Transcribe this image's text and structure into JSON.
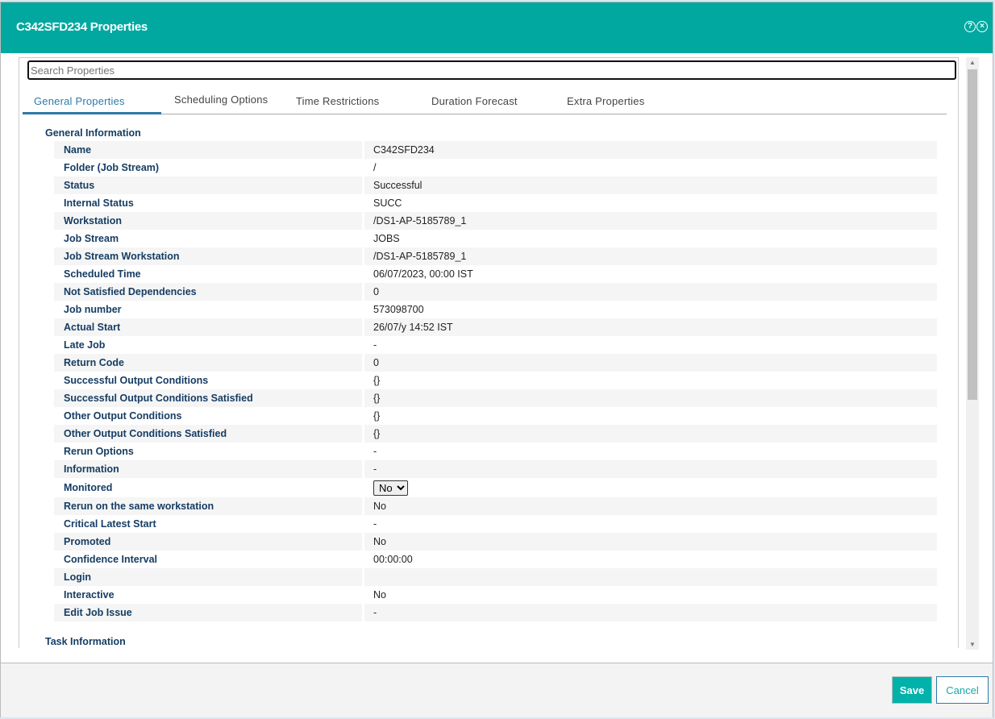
{
  "dialog": {
    "title": "C342SFD234 Properties",
    "help_icon": "question-circle-icon",
    "close_icon": "close-circle-icon",
    "accent": "#00a8a0"
  },
  "search": {
    "placeholder": "Search Properties",
    "value": ""
  },
  "tabs": [
    {
      "label": "General Properties",
      "active": true
    },
    {
      "label": "Scheduling Options"
    },
    {
      "label": "Time Restrictions"
    },
    {
      "label": "Duration Forecast"
    },
    {
      "label": "Extra Properties"
    }
  ],
  "sections": {
    "general": "General Information",
    "task": "Task Information"
  },
  "properties": [
    {
      "label": "Name",
      "value": "C342SFD234"
    },
    {
      "label": "Folder (Job Stream)",
      "value": "/"
    },
    {
      "label": "Status",
      "value": "Successful"
    },
    {
      "label": "Internal Status",
      "value": "SUCC"
    },
    {
      "label": "Workstation",
      "value": "/DS1-AP-5185789_1"
    },
    {
      "label": "Job Stream",
      "value": "JOBS"
    },
    {
      "label": "Job Stream Workstation",
      "value": "/DS1-AP-5185789_1"
    },
    {
      "label": "Scheduled Time",
      "value": "06/07/2023, 00:00 IST"
    },
    {
      "label": "Not Satisfied Dependencies",
      "value": "0"
    },
    {
      "label": "Job number",
      "value": "573098700"
    },
    {
      "label": "Actual Start",
      "value": "26/07/y 14:52 IST"
    },
    {
      "label": "Late Job",
      "value": "-"
    },
    {
      "label": "Return Code",
      "value": "0"
    },
    {
      "label": "Successful Output Conditions",
      "value": "{}"
    },
    {
      "label": "Successful Output Conditions Satisfied",
      "value": "{}"
    },
    {
      "label": "Other Output Conditions",
      "value": "{}"
    },
    {
      "label": "Other Output Conditions Satisfied",
      "value": "{}"
    },
    {
      "label": "Rerun Options",
      "value": "-"
    },
    {
      "label": "Information",
      "value": "-"
    },
    {
      "label": "Monitored",
      "value": "No",
      "type": "select"
    },
    {
      "label": "Rerun on the same workstation",
      "value": "No"
    },
    {
      "label": "Critical Latest Start",
      "value": "-"
    },
    {
      "label": "Promoted",
      "value": "No"
    },
    {
      "label": "Confidence Interval",
      "value": "00:00:00"
    },
    {
      "label": "Login",
      "value": ""
    },
    {
      "label": "Interactive",
      "value": "No"
    },
    {
      "label": "Edit Job Issue",
      "value": "-"
    }
  ],
  "footer": {
    "save": "Save",
    "cancel": "Cancel"
  }
}
